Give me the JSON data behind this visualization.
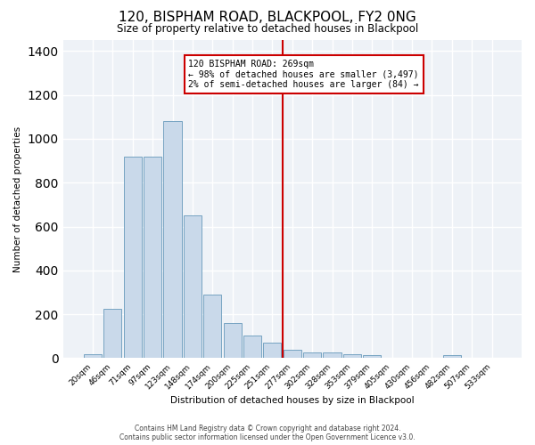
{
  "title": "120, BISPHAM ROAD, BLACKPOOL, FY2 0NG",
  "subtitle": "Size of property relative to detached houses in Blackpool",
  "xlabel": "Distribution of detached houses by size in Blackpool",
  "ylabel": "Number of detached properties",
  "bar_color": "#c9d9ea",
  "bar_edge_color": "#6699bb",
  "categories": [
    "20sqm",
    "46sqm",
    "71sqm",
    "97sqm",
    "123sqm",
    "148sqm",
    "174sqm",
    "200sqm",
    "225sqm",
    "251sqm",
    "277sqm",
    "302sqm",
    "328sqm",
    "353sqm",
    "379sqm",
    "405sqm",
    "430sqm",
    "456sqm",
    "482sqm",
    "507sqm",
    "533sqm"
  ],
  "values": [
    20,
    225,
    920,
    920,
    1080,
    650,
    290,
    160,
    105,
    70,
    40,
    25,
    25,
    20,
    15,
    0,
    0,
    0,
    15,
    0,
    0
  ],
  "vline_color": "#cc0000",
  "annotation_line1": "120 BISPHAM ROAD: 269sqm",
  "annotation_line2": "← 98% of detached houses are smaller (3,497)",
  "annotation_line3": "2% of semi-detached houses are larger (84) →",
  "annotation_box_color": "#cc0000",
  "ylim": [
    0,
    1450
  ],
  "yticks": [
    0,
    200,
    400,
    600,
    800,
    1000,
    1200,
    1400
  ],
  "footer1": "Contains HM Land Registry data © Crown copyright and database right 2024.",
  "footer2": "Contains public sector information licensed under the Open Government Licence v3.0.",
  "bg_color": "#eef2f7",
  "grid_color": "#ffffff"
}
